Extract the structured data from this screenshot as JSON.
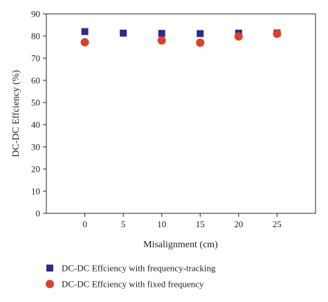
{
  "chart_data": {
    "type": "scatter",
    "xlabel": "Misalignment (cm)",
    "ylabel": "DC-DC Effciency (%)",
    "xlim": [
      -5,
      30
    ],
    "ylim": [
      0,
      90
    ],
    "x_ticks": [
      0,
      5,
      10,
      15,
      20,
      25
    ],
    "y_ticks": [
      0,
      10,
      20,
      30,
      40,
      50,
      60,
      70,
      80,
      90
    ],
    "grid": false,
    "legend_position": "bottom",
    "series": [
      {
        "name": "DC-DC Effciency with frequency-tracking",
        "marker": "square",
        "color": "#2e2a87",
        "x": [
          0,
          5,
          10,
          15,
          20,
          25
        ],
        "y": [
          82.0,
          81.3,
          81.2,
          81.1,
          81.3,
          81.4
        ]
      },
      {
        "name": "DC-DC Effciency with fixed frequency",
        "marker": "circle",
        "color": "#d9412b",
        "x": [
          0,
          10,
          15,
          20,
          25
        ],
        "y": [
          77.2,
          78.0,
          77.0,
          79.8,
          81.0
        ]
      }
    ]
  }
}
